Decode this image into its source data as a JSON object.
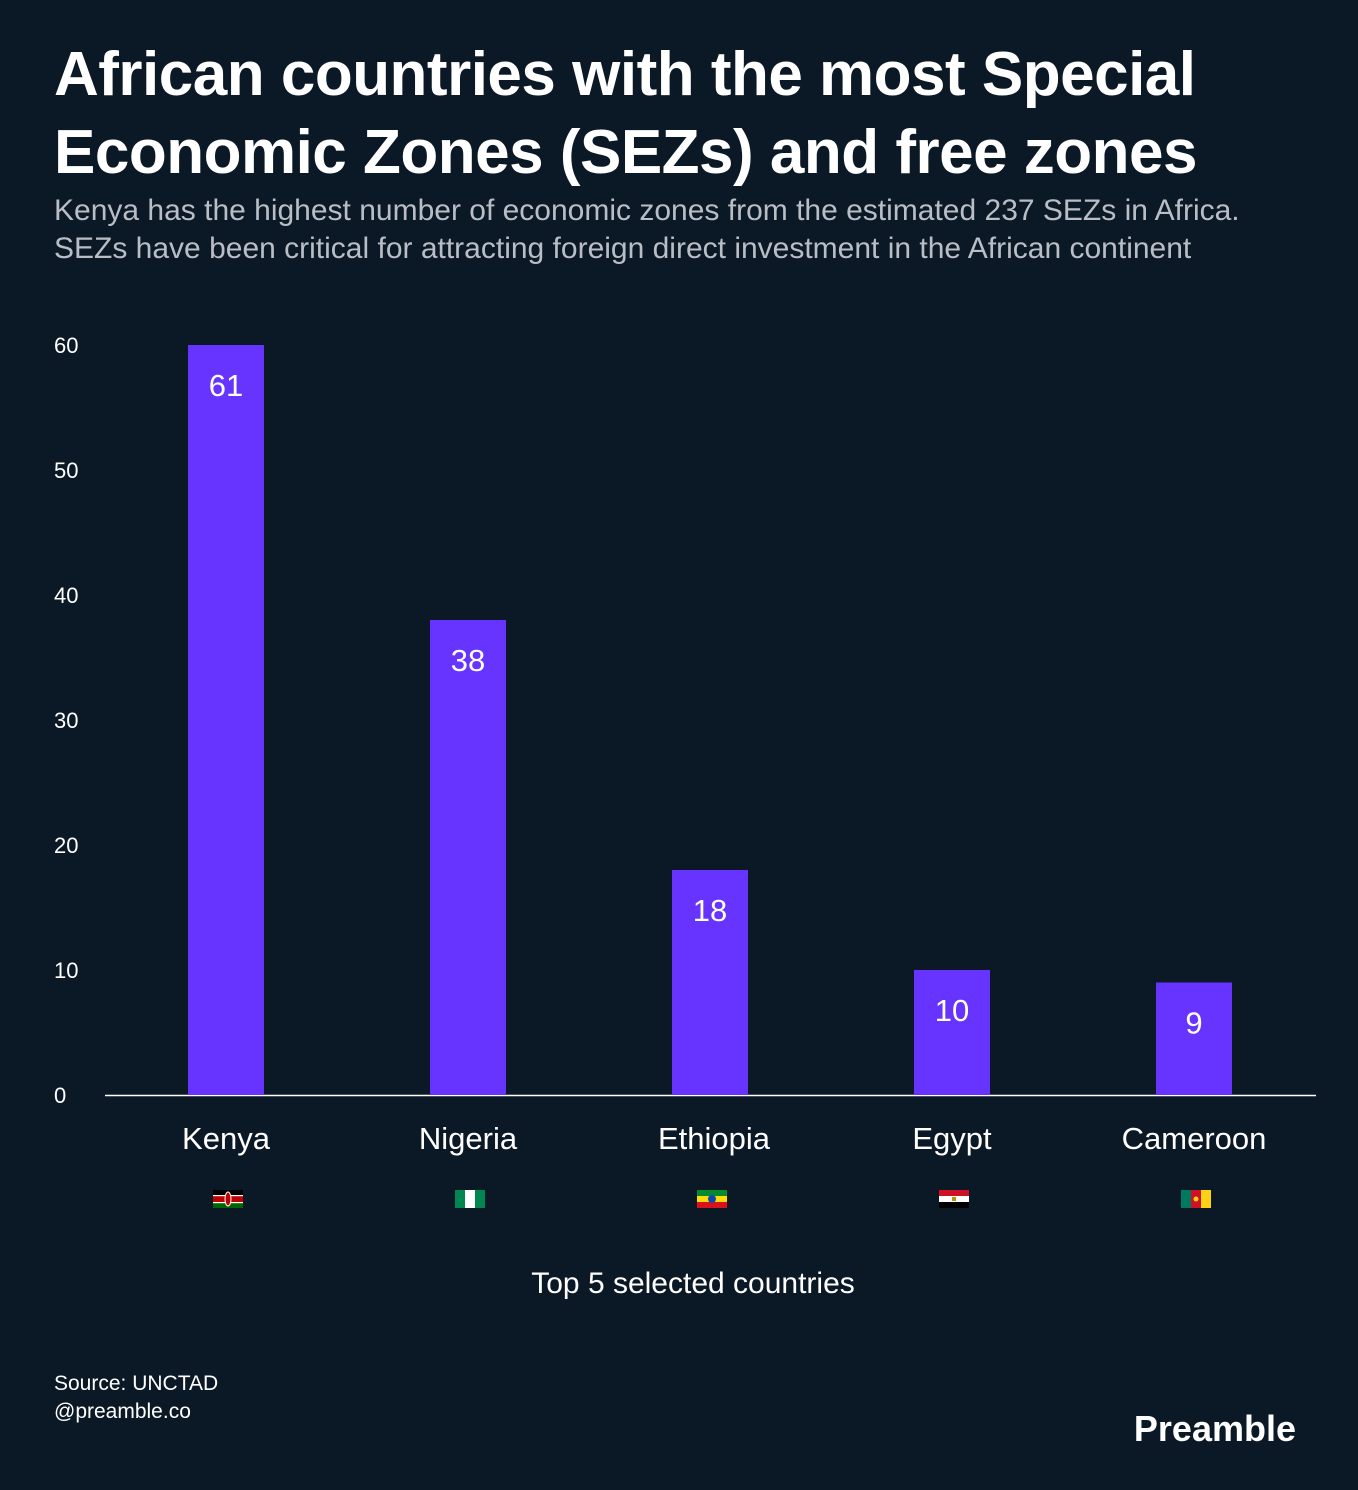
{
  "title": "African countries with the most Special Economic Zones (SEZs) and free zones",
  "subtitle": "Kenya has the highest number of economic zones from the estimated 237 SEZs in Africa. SEZs have been critical for attracting foreign direct investment in the African continent",
  "source": "Source: UNCTAD",
  "handle": "@preamble.co",
  "logo": "Preamble",
  "colors": {
    "background": "#0b1826",
    "bar": "#6633ff",
    "text": "#ffffff",
    "subtitle": "#b9bec6"
  },
  "chart_data": {
    "type": "bar",
    "categories": [
      "Kenya",
      "Nigeria",
      "Ethiopia",
      "Egypt",
      "Cameroon"
    ],
    "values": [
      61,
      38,
      18,
      10,
      9
    ],
    "data_labels": [
      "61",
      "38",
      "18",
      "10",
      "9"
    ],
    "flag_icons": [
      "kenya-flag-icon",
      "nigeria-flag-icon",
      "ethiopia-flag-icon",
      "egypt-flag-icon",
      "cameroon-flag-icon"
    ],
    "xlabel": "Top 5 selected countries",
    "ylabel": "",
    "yticks": [
      0,
      10,
      20,
      30,
      40,
      50,
      60
    ],
    "ylim": [
      0,
      60
    ],
    "grid": false,
    "legend": "none"
  }
}
